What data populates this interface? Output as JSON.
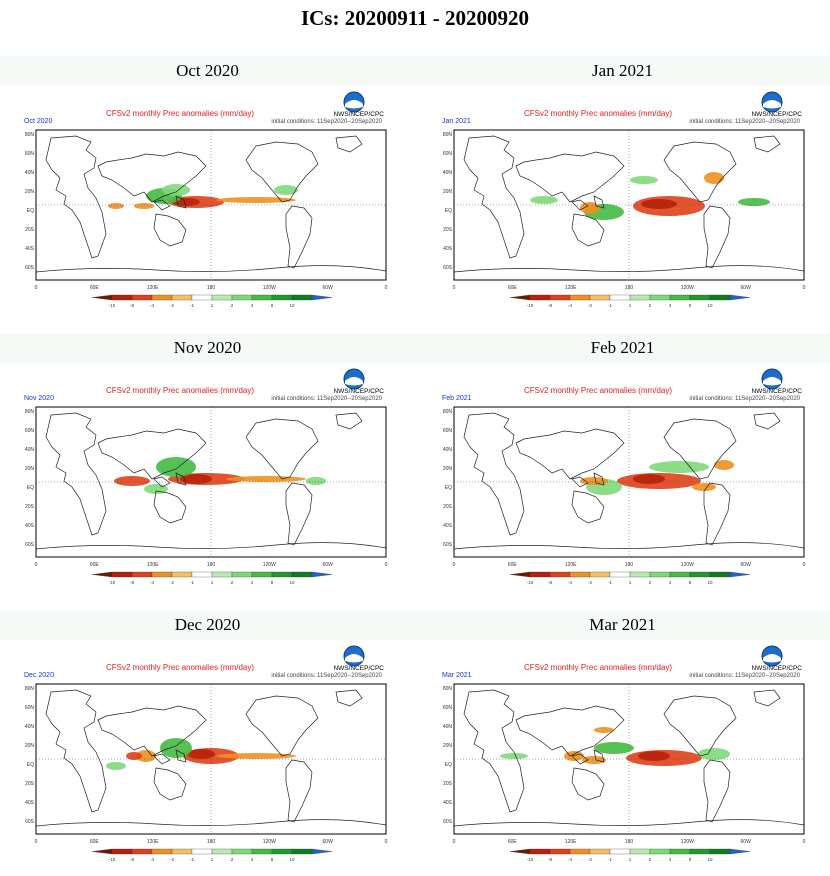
{
  "page": {
    "title": "ICs: 20200911 - 20200920"
  },
  "panel_common": {
    "product_title": "CFSv2 monthly Prec anomalies (mm/day)",
    "agency": "NWS/NCEP/CPC",
    "init": "initial conditions: 11Sep2020--20Sep2020",
    "lat_labels": [
      "80N",
      "60N",
      "40N",
      "20N",
      "EQ",
      "20S",
      "40S",
      "60S"
    ],
    "lon_labels": [
      "0",
      "60E",
      "120E",
      "180",
      "120W",
      "60W",
      "0"
    ],
    "scale_labels": [
      "-10",
      "-8",
      "-4",
      "-2",
      "-1",
      "1",
      "2",
      "4",
      "8",
      "10"
    ],
    "scale_colors": [
      "#6b1a00",
      "#b8200a",
      "#e0401a",
      "#f09020",
      "#f5c060",
      "#ffffff",
      "#b6ecb0",
      "#7ed97a",
      "#44bb44",
      "#1f9a2a",
      "#127a20",
      "#2060d0"
    ]
  },
  "panels": [
    {
      "header": "Oct 2020",
      "map_label": "Oct 2020"
    },
    {
      "header": "Jan 2021",
      "map_label": "Jan 2021"
    },
    {
      "header": "Nov 2020",
      "map_label": "Nov 2020"
    },
    {
      "header": "Feb 2021",
      "map_label": "Feb 2021"
    },
    {
      "header": "Dec 2020",
      "map_label": "Dec 2020"
    },
    {
      "header": "Mar 2021",
      "map_label": "Mar 2021"
    }
  ]
}
